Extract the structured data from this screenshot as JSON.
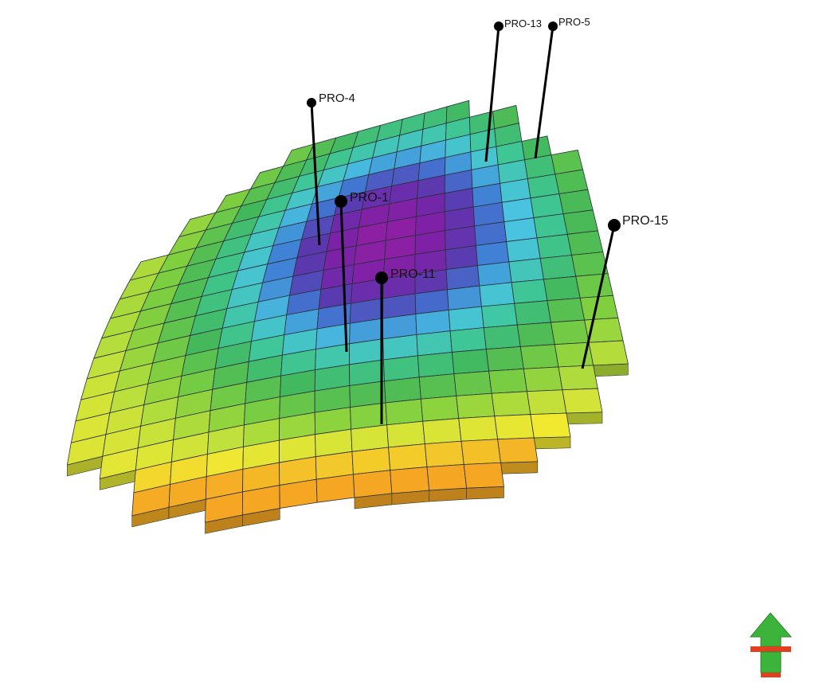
{
  "wells": [
    {
      "id": "pro-4",
      "label": "PRO-4"
    },
    {
      "id": "pro-1",
      "label": "PRO-1"
    },
    {
      "id": "pro-11",
      "label": "PRO-11"
    },
    {
      "id": "pro-13",
      "label": "PRO-13"
    },
    {
      "id": "pro-5",
      "label": "PRO-5"
    },
    {
      "id": "pro-15",
      "label": "PRO-15"
    }
  ],
  "north_arrow": {
    "icon": "north-arrow-icon",
    "colors": [
      "#3cb43c",
      "#e04020"
    ]
  },
  "colormap": [
    "#f5a623",
    "#f2e830",
    "#c9e23a",
    "#7fcf3f",
    "#43b85a",
    "#3fc79a",
    "#49c3e0",
    "#3f7bd4",
    "#5a3ab0",
    "#7a22a8",
    "#8e1fa3"
  ]
}
